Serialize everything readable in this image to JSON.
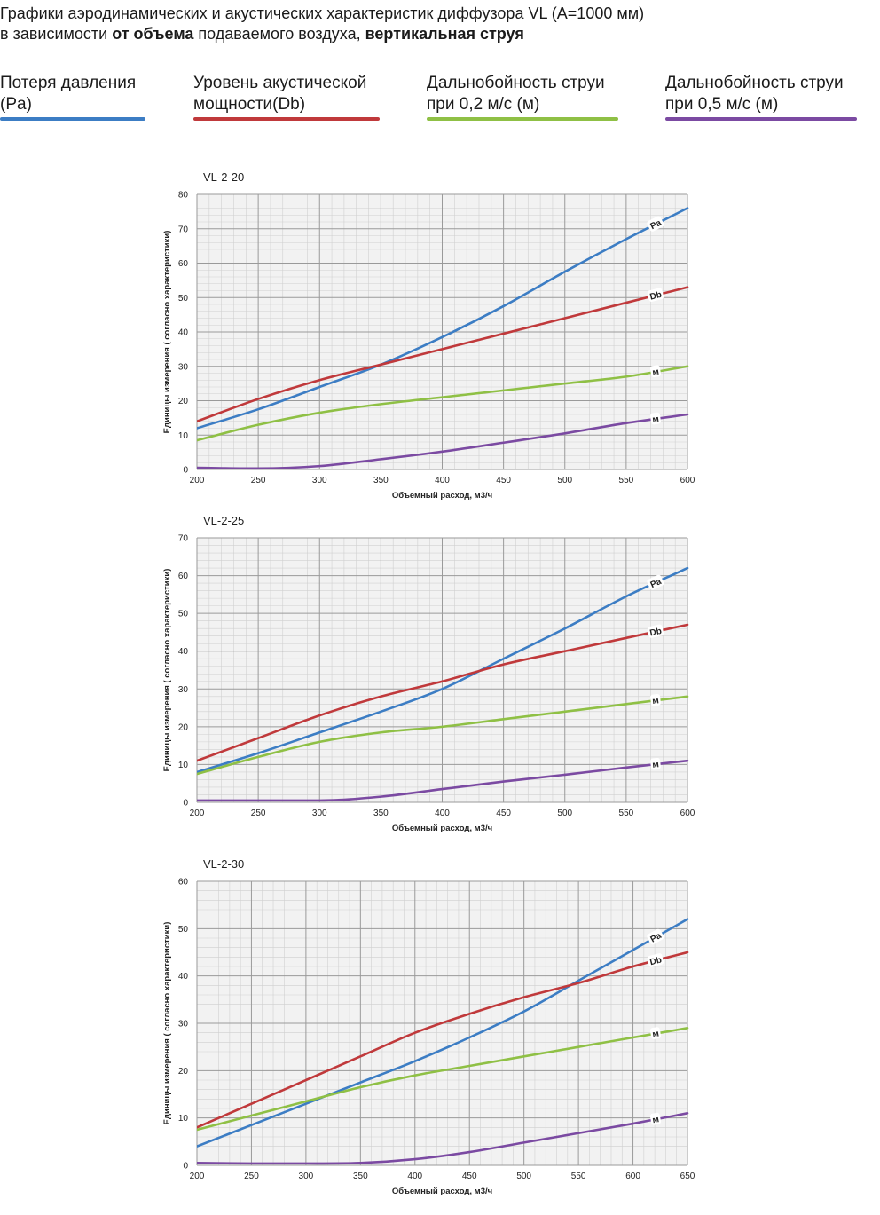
{
  "header": {
    "line1": "Графики аэродинамических и акустических характеристик  диффузора VL (А=1000 мм)",
    "line2_pre": "в зависимости ",
    "line2_bold1": "от объема",
    "line2_mid": " подаваемого воздуха, ",
    "line2_bold2": "вертикальная струя"
  },
  "legend": [
    {
      "label": "Потеря давления\n(Pa)",
      "color": "#3c7dc4"
    },
    {
      "label": "Уровень акустической\nмощности(Db)",
      "color": "#c0393b"
    },
    {
      "label": "Дальнобойность струи\nпри 0,2 м/с (м)",
      "color": "#8fc045"
    },
    {
      "label": "Дальнобойность струи\nпри 0,5 м/с (м)",
      "color": "#7b4aa2"
    }
  ],
  "chart_data": [
    {
      "type": "line",
      "title": "VL-2-20",
      "xlabel": "Объемный расход, м3/ч",
      "ylabel": "Единицы измерения ( согласно характеристики)",
      "xlim": [
        200,
        600
      ],
      "ylim": [
        0,
        80
      ],
      "xticks": [
        200,
        250,
        300,
        350,
        400,
        450,
        500,
        550,
        600
      ],
      "yticks": [
        0,
        10,
        20,
        30,
        40,
        50,
        60,
        70,
        80
      ],
      "grid": true,
      "series": [
        {
          "name": "Pa",
          "color": "#3c7dc4",
          "x": [
            200,
            250,
            300,
            350,
            400,
            450,
            500,
            550,
            600
          ],
          "y": [
            12,
            17.5,
            24,
            30.5,
            38.5,
            47.5,
            57.5,
            67,
            76
          ]
        },
        {
          "name": "Db",
          "color": "#c0393b",
          "x": [
            200,
            250,
            300,
            350,
            400,
            450,
            500,
            550,
            600
          ],
          "y": [
            14,
            20.5,
            26,
            30.5,
            35,
            39.5,
            44,
            48.5,
            53
          ]
        },
        {
          "name": "м",
          "color": "#8fc045",
          "x": [
            200,
            250,
            300,
            350,
            400,
            450,
            500,
            550,
            600
          ],
          "y": [
            8.5,
            13,
            16.5,
            19,
            21,
            23,
            25,
            27,
            30
          ]
        },
        {
          "name": "м",
          "color": "#7b4aa2",
          "x": [
            200,
            250,
            300,
            350,
            400,
            450,
            500,
            550,
            600
          ],
          "y": [
            0.5,
            0.3,
            1,
            3,
            5.2,
            7.8,
            10.5,
            13.5,
            16
          ]
        }
      ]
    },
    {
      "type": "line",
      "title": "VL-2-25",
      "xlabel": "Объемный расход, м3/ч",
      "ylabel": "Единицы измерения ( согласно характеристики)",
      "xlim": [
        200,
        600
      ],
      "ylim": [
        0,
        70
      ],
      "xticks": [
        200,
        250,
        300,
        350,
        400,
        450,
        500,
        550,
        600
      ],
      "yticks": [
        0,
        10,
        20,
        30,
        40,
        50,
        60,
        70
      ],
      "grid": true,
      "series": [
        {
          "name": "Pa",
          "color": "#3c7dc4",
          "x": [
            200,
            250,
            300,
            350,
            400,
            450,
            500,
            550,
            600
          ],
          "y": [
            8,
            13,
            18.5,
            24,
            30,
            38,
            46,
            54.5,
            62
          ]
        },
        {
          "name": "Db",
          "color": "#c0393b",
          "x": [
            200,
            250,
            300,
            350,
            400,
            450,
            500,
            550,
            600
          ],
          "y": [
            11,
            17,
            23,
            28,
            32,
            36.5,
            40,
            43.5,
            47
          ]
        },
        {
          "name": "м",
          "color": "#8fc045",
          "x": [
            200,
            250,
            300,
            350,
            400,
            450,
            500,
            550,
            600
          ],
          "y": [
            7.5,
            12,
            16,
            18.5,
            20,
            22,
            24,
            26,
            28
          ]
        },
        {
          "name": "м",
          "color": "#7b4aa2",
          "x": [
            200,
            250,
            300,
            350,
            400,
            450,
            500,
            550,
            600
          ],
          "y": [
            0.5,
            0.5,
            0.5,
            1.5,
            3.5,
            5.5,
            7.3,
            9.2,
            11
          ]
        }
      ]
    },
    {
      "type": "line",
      "title": "VL-2-30",
      "xlabel": "Объемный расход, м3/ч",
      "ylabel": "Единицы измерения ( согласно характеристики)",
      "xlim": [
        200,
        650
      ],
      "ylim": [
        0,
        60
      ],
      "xticks": [
        200,
        250,
        300,
        350,
        400,
        450,
        500,
        550,
        600,
        650
      ],
      "yticks": [
        0,
        10,
        20,
        30,
        40,
        50,
        60
      ],
      "grid": true,
      "series": [
        {
          "name": "Pa",
          "color": "#3c7dc4",
          "x": [
            200,
            250,
            300,
            350,
            400,
            450,
            500,
            550,
            600,
            650
          ],
          "y": [
            4,
            8.5,
            13,
            17.5,
            22,
            27,
            32.5,
            39,
            45.5,
            52
          ]
        },
        {
          "name": "Db",
          "color": "#c0393b",
          "x": [
            200,
            250,
            300,
            350,
            400,
            450,
            500,
            550,
            600,
            650
          ],
          "y": [
            8,
            13,
            18,
            23,
            28,
            32,
            35.5,
            38.5,
            42,
            45
          ]
        },
        {
          "name": "м",
          "color": "#8fc045",
          "x": [
            200,
            250,
            300,
            350,
            400,
            450,
            500,
            550,
            600,
            650
          ],
          "y": [
            7.5,
            10.5,
            13.5,
            16.5,
            19,
            21,
            23,
            25,
            27,
            29
          ]
        },
        {
          "name": "м",
          "color": "#7b4aa2",
          "x": [
            200,
            250,
            300,
            350,
            400,
            450,
            500,
            550,
            600,
            650
          ],
          "y": [
            0.5,
            0.4,
            0.4,
            0.5,
            1.3,
            2.8,
            4.8,
            6.8,
            8.8,
            11
          ]
        }
      ]
    }
  ]
}
